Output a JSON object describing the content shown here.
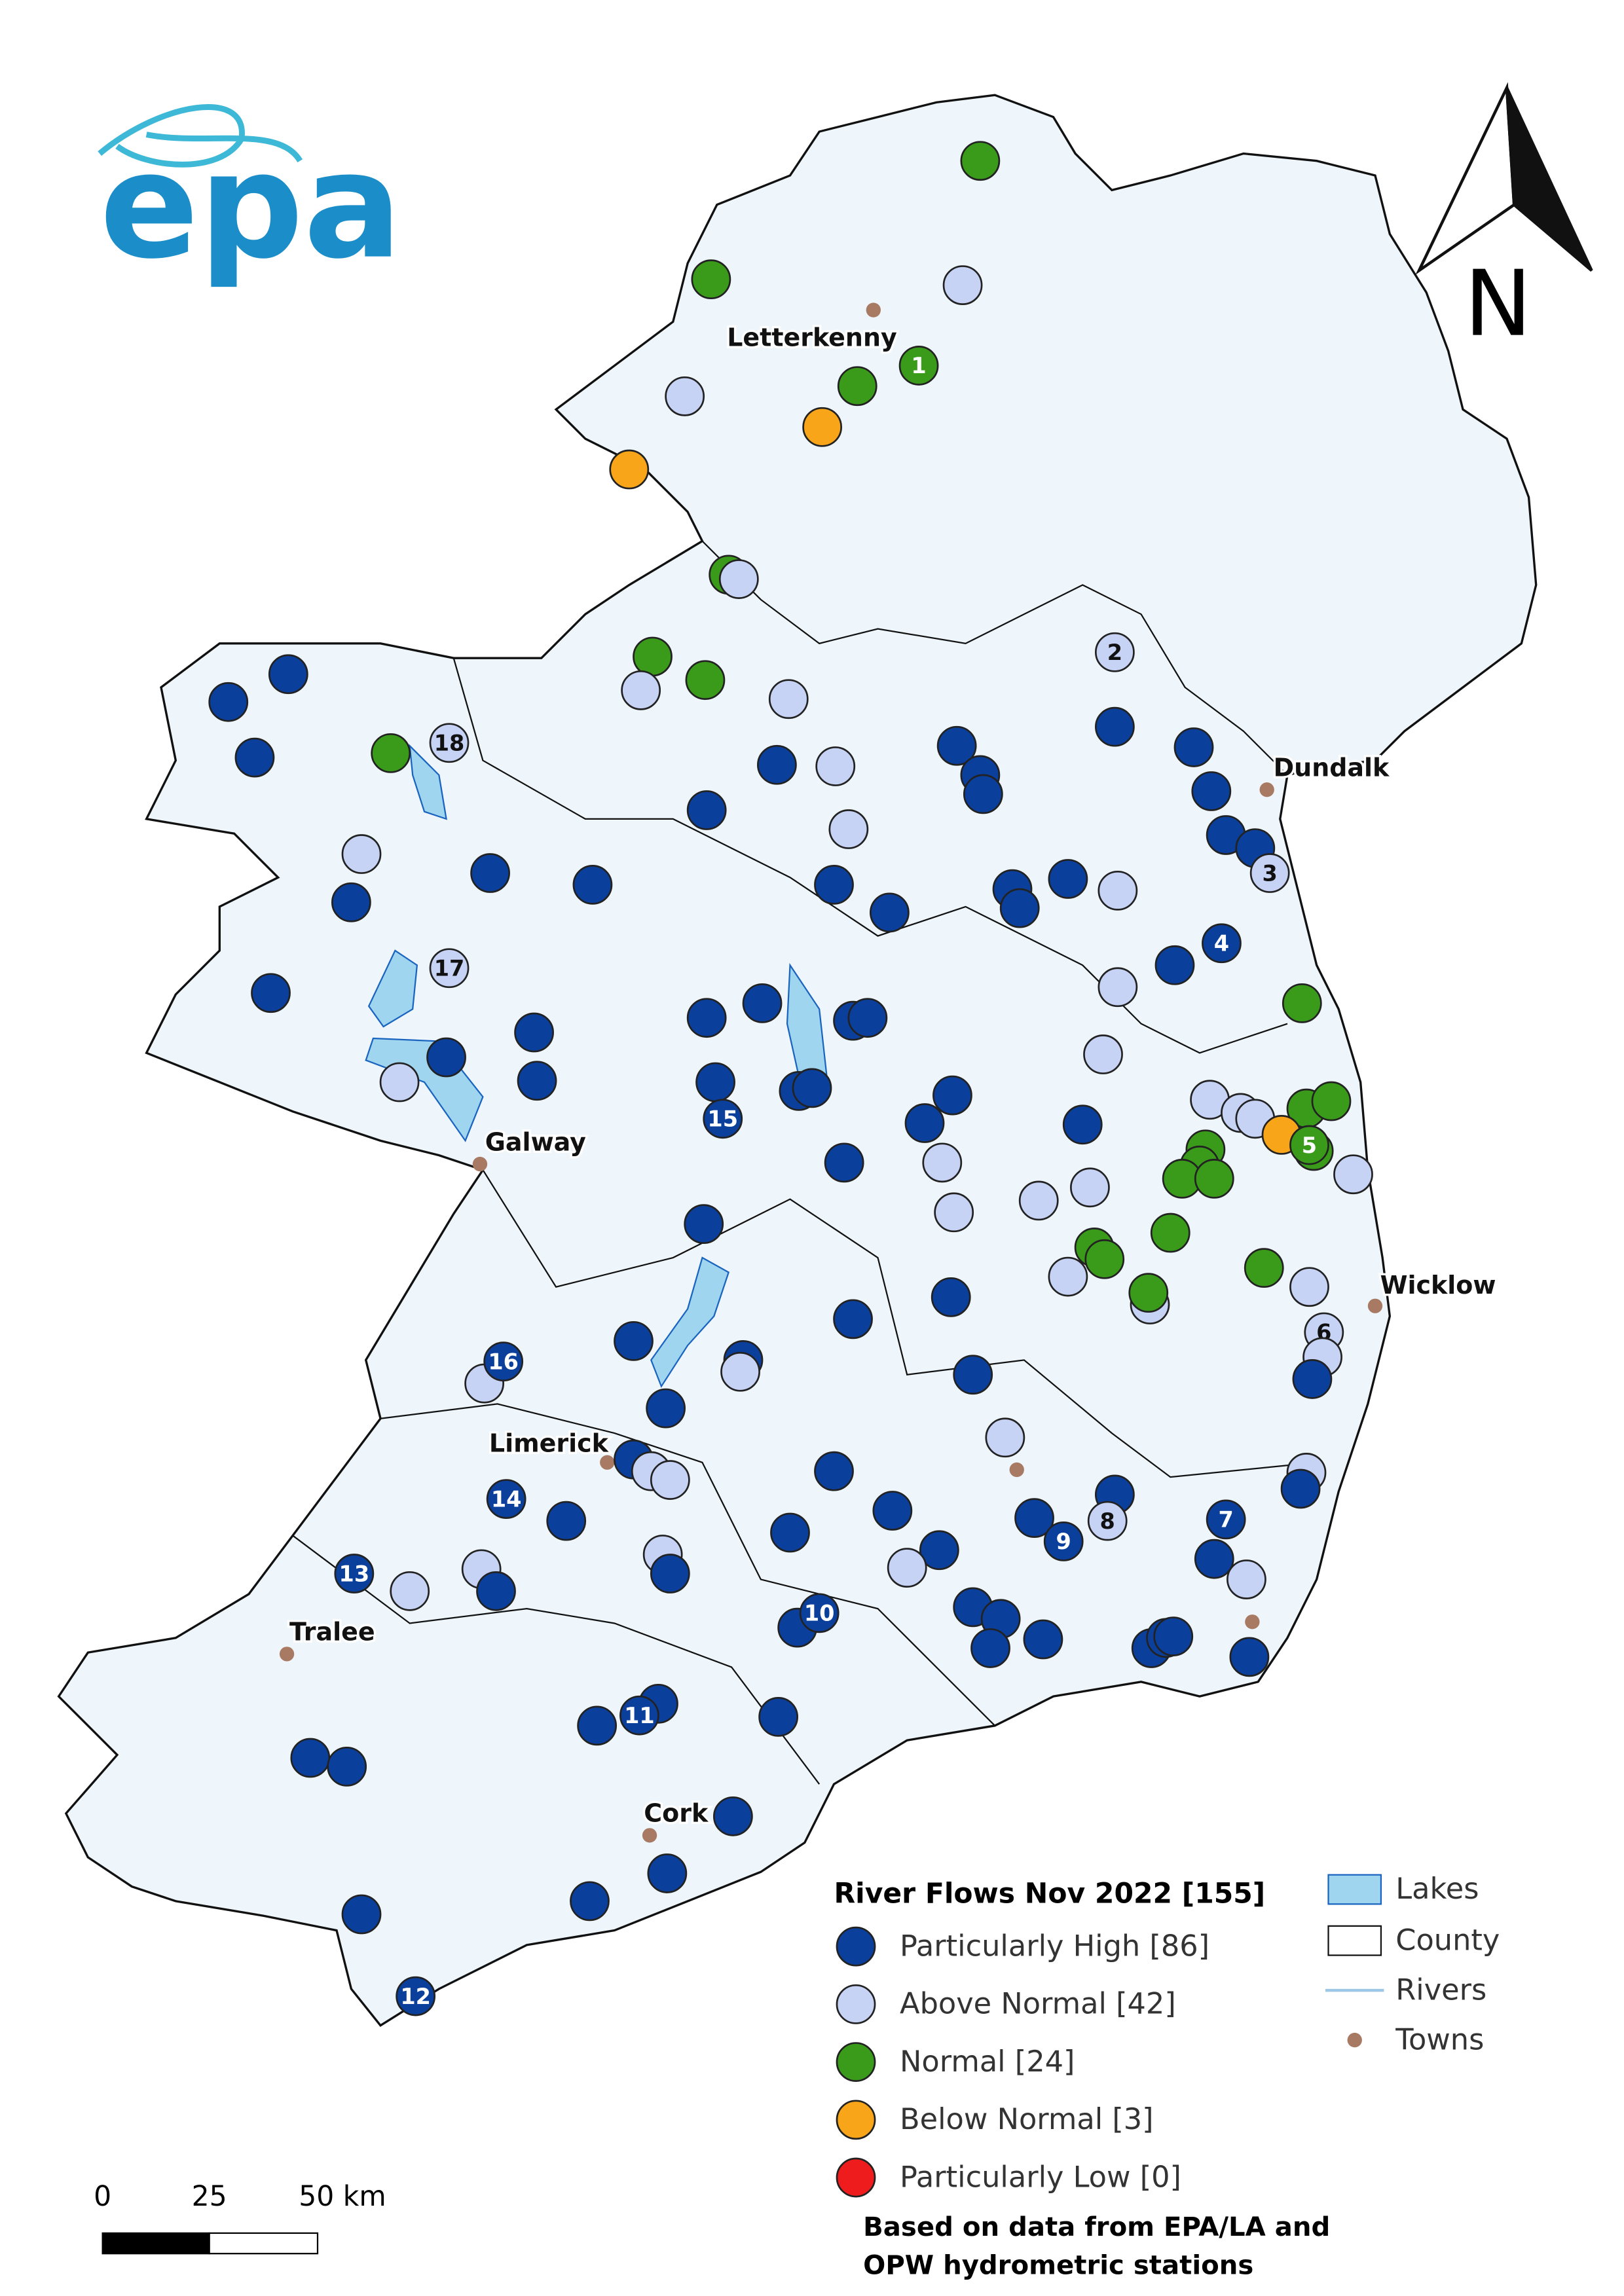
{
  "logo": "epa",
  "north": "N",
  "towns": [
    "Letterkenny",
    "Dundalk",
    "Galway",
    "Wicklow",
    "Limerick",
    "Tralee",
    "Cork"
  ],
  "station_labels": [
    "1",
    "2",
    "3",
    "4",
    "5",
    "6",
    "7",
    "8",
    "9",
    "10",
    "11",
    "12",
    "13",
    "14",
    "15",
    "16",
    "17",
    "18"
  ],
  "legend": {
    "title": "River Flows Nov 2022 [155]",
    "classes": [
      {
        "label": "Particularly High [86]",
        "color": "#0b3f9c"
      },
      {
        "label": "Above Normal [42]",
        "color": "#c7d3f5"
      },
      {
        "label": "Normal [24]",
        "color": "#3a9b1a"
      },
      {
        "label": "Below Normal [3]",
        "color": "#f9a51a"
      },
      {
        "label": "Particularly Low [0]",
        "color": "#ee1c1c"
      }
    ],
    "layers": [
      "Lakes",
      "County",
      "Rivers",
      "Towns"
    ]
  },
  "scale": [
    "0",
    "25",
    "50 km"
  ],
  "source": [
    "Based on data from EPA/LA and",
    "OPW hydrometric stations"
  ]
}
